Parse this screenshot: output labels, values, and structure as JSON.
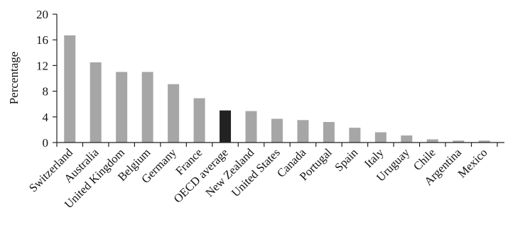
{
  "chart_data": {
    "type": "bar",
    "title": "",
    "xlabel": "",
    "ylabel": "Percentage",
    "ylim": [
      0,
      20
    ],
    "yticks": [
      0,
      4,
      8,
      12,
      16,
      20
    ],
    "grid": false,
    "categories": [
      "Switzerland",
      "Australia",
      "United Kingdom",
      "Belgium",
      "Germany",
      "France",
      "OECD average",
      "New Zealand",
      "United States",
      "Canada",
      "Portugal",
      "Spain",
      "Italy",
      "Uruguay",
      "Chile",
      "Argentina",
      "Mexico"
    ],
    "values": [
      16.7,
      12.5,
      11.0,
      11.0,
      9.1,
      6.9,
      5.0,
      4.9,
      3.7,
      3.5,
      3.2,
      2.3,
      1.6,
      1.1,
      0.5,
      0.3,
      0.3
    ],
    "highlight_category": "OECD average",
    "colors": {
      "bar": "#a6a6a6",
      "highlight": "#222222",
      "axis": "#222222"
    }
  }
}
